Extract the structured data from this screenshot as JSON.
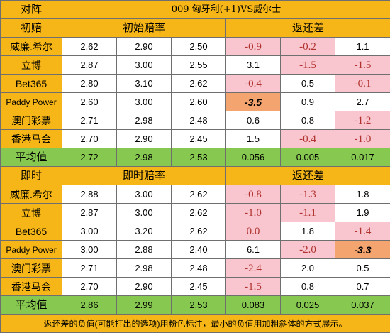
{
  "header": {
    "corner_label": "对阵",
    "match_title": "009 匈牙利(+1)VS威尔士"
  },
  "sections": [
    {
      "label": "初赔",
      "odds_header": "初始赔率",
      "return_header": "返还差",
      "rows": [
        {
          "book": "威廉.希尔",
          "odds": [
            "2.62",
            "2.90",
            "2.50"
          ],
          "diff": [
            "-0.9",
            "-0.2",
            "1.1"
          ],
          "style": [
            "neg",
            "neg",
            "w"
          ]
        },
        {
          "book": "立博",
          "odds": [
            "2.87",
            "3.00",
            "2.55"
          ],
          "diff": [
            "3.1",
            "-1.5",
            "-1.5"
          ],
          "style": [
            "w",
            "neg",
            "neg"
          ]
        },
        {
          "book": "Bet365",
          "odds": [
            "2.80",
            "3.10",
            "2.62"
          ],
          "diff": [
            "-0.4",
            "0.5",
            "-0.1"
          ],
          "style": [
            "neg",
            "w",
            "neg"
          ]
        },
        {
          "book": "Paddy Power",
          "odds": [
            "2.60",
            "3.00",
            "2.60"
          ],
          "diff": [
            "-3.5",
            "0.9",
            "2.7"
          ],
          "style": [
            "min",
            "w",
            "w"
          ]
        },
        {
          "book": "澳门彩票",
          "odds": [
            "2.71",
            "2.98",
            "2.48"
          ],
          "diff": [
            "0.6",
            "0.8",
            "-1.2"
          ],
          "style": [
            "w",
            "w",
            "neg"
          ]
        },
        {
          "book": "香港马会",
          "odds": [
            "2.70",
            "2.90",
            "2.45"
          ],
          "diff": [
            "1.5",
            "-0.4",
            "-1.0"
          ],
          "style": [
            "w",
            "neg",
            "neg"
          ]
        }
      ],
      "avg": {
        "label": "平均值",
        "odds": [
          "2.72",
          "2.98",
          "2.53"
        ],
        "diff": [
          "0.056",
          "0.005",
          "0.017"
        ]
      }
    },
    {
      "label": "即时",
      "odds_header": "即时赔率",
      "return_header": "返还差",
      "rows": [
        {
          "book": "威廉.希尔",
          "odds": [
            "2.88",
            "3.00",
            "2.62"
          ],
          "diff": [
            "-0.8",
            "-1.3",
            "1.8"
          ],
          "style": [
            "neg",
            "neg",
            "w"
          ]
        },
        {
          "book": "立博",
          "odds": [
            "2.87",
            "3.00",
            "2.62"
          ],
          "diff": [
            "-1.0",
            "-1.1",
            "1.9"
          ],
          "style": [
            "neg",
            "neg",
            "w"
          ]
        },
        {
          "book": "Bet365",
          "odds": [
            "3.00",
            "3.20",
            "2.62"
          ],
          "diff": [
            "0.0",
            "1.8",
            "-1.4"
          ],
          "style": [
            "neg",
            "w",
            "neg"
          ]
        },
        {
          "book": "Paddy Power",
          "odds": [
            "3.00",
            "2.88",
            "2.40"
          ],
          "diff": [
            "6.1",
            "-2.0",
            "-3.3"
          ],
          "style": [
            "w",
            "neg",
            "min"
          ]
        },
        {
          "book": "澳门彩票",
          "odds": [
            "2.71",
            "2.98",
            "2.48"
          ],
          "diff": [
            "-2.4",
            "2.0",
            "0.5"
          ],
          "style": [
            "neg",
            "w",
            "w"
          ]
        },
        {
          "book": "香港马会",
          "odds": [
            "2.70",
            "2.90",
            "2.45"
          ],
          "diff": [
            "-1.5",
            "0.8",
            "0.7"
          ],
          "style": [
            "neg",
            "w",
            "w"
          ]
        }
      ],
      "avg": {
        "label": "平均值",
        "odds": [
          "2.86",
          "2.99",
          "2.53"
        ],
        "diff": [
          "0.083",
          "0.025",
          "0.037"
        ]
      }
    }
  ],
  "footer": {
    "note": "返还差的负值(可能打出的选项)用粉色标注，最小的负值用加粗斜体的方式展示。"
  },
  "colors": {
    "header_bg": "#f6b617",
    "negative_bg": "#f9c6cf",
    "negative_text": "#b0322e",
    "minimum_bg": "#f3a46f",
    "average_bg": "#86c850"
  }
}
